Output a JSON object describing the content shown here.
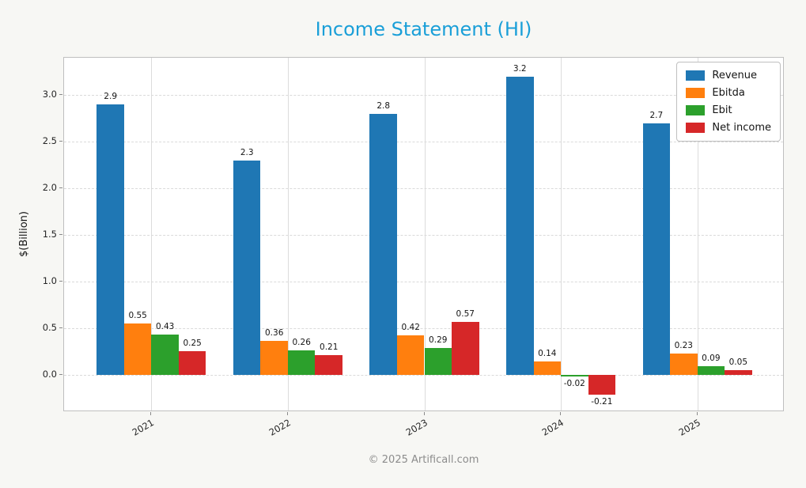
{
  "page": {
    "title_color": "#1a9fd8",
    "footer": "© 2025 Artificall.com"
  },
  "chart_data": {
    "type": "bar",
    "title": "Income Statement (HI)",
    "ylabel": "$(Billion)",
    "xlabel": "",
    "categories": [
      "2021",
      "2022",
      "2023",
      "2024",
      "2025"
    ],
    "series": [
      {
        "name": "Revenue",
        "color": "#1f77b4",
        "values": [
          2.9,
          2.3,
          2.8,
          3.2,
          2.7
        ],
        "labels": [
          "2.9",
          "2.3",
          "2.8",
          "3.2",
          "2.7"
        ]
      },
      {
        "name": "Ebitda",
        "color": "#ff7f0e",
        "values": [
          0.55,
          0.36,
          0.42,
          0.14,
          0.23
        ],
        "labels": [
          "0.55",
          "0.36",
          "0.42",
          "0.14",
          "0.23"
        ]
      },
      {
        "name": "Ebit",
        "color": "#2ca02c",
        "values": [
          0.43,
          0.26,
          0.29,
          -0.02,
          0.09
        ],
        "labels": [
          "0.43",
          "0.26",
          "0.29",
          "-0.02",
          "0.09"
        ]
      },
      {
        "name": "Net income",
        "color": "#d62728",
        "values": [
          0.25,
          0.21,
          0.57,
          -0.21,
          0.05
        ],
        "labels": [
          "0.25",
          "0.21",
          "0.57",
          "-0.21",
          "0.05"
        ]
      }
    ],
    "ylim": [
      -0.4,
      3.4
    ],
    "xlim": [
      -0.64,
      4.64
    ],
    "yticks": [
      0.0,
      0.5,
      1.0,
      1.5,
      2.0,
      2.5,
      3.0
    ],
    "ytick_labels": [
      "0.0",
      "0.5",
      "1.0",
      "1.5",
      "2.0",
      "2.5",
      "3.0"
    ],
    "bar_width_data_units": 0.2,
    "grid": true,
    "legend_position": "upper right"
  }
}
